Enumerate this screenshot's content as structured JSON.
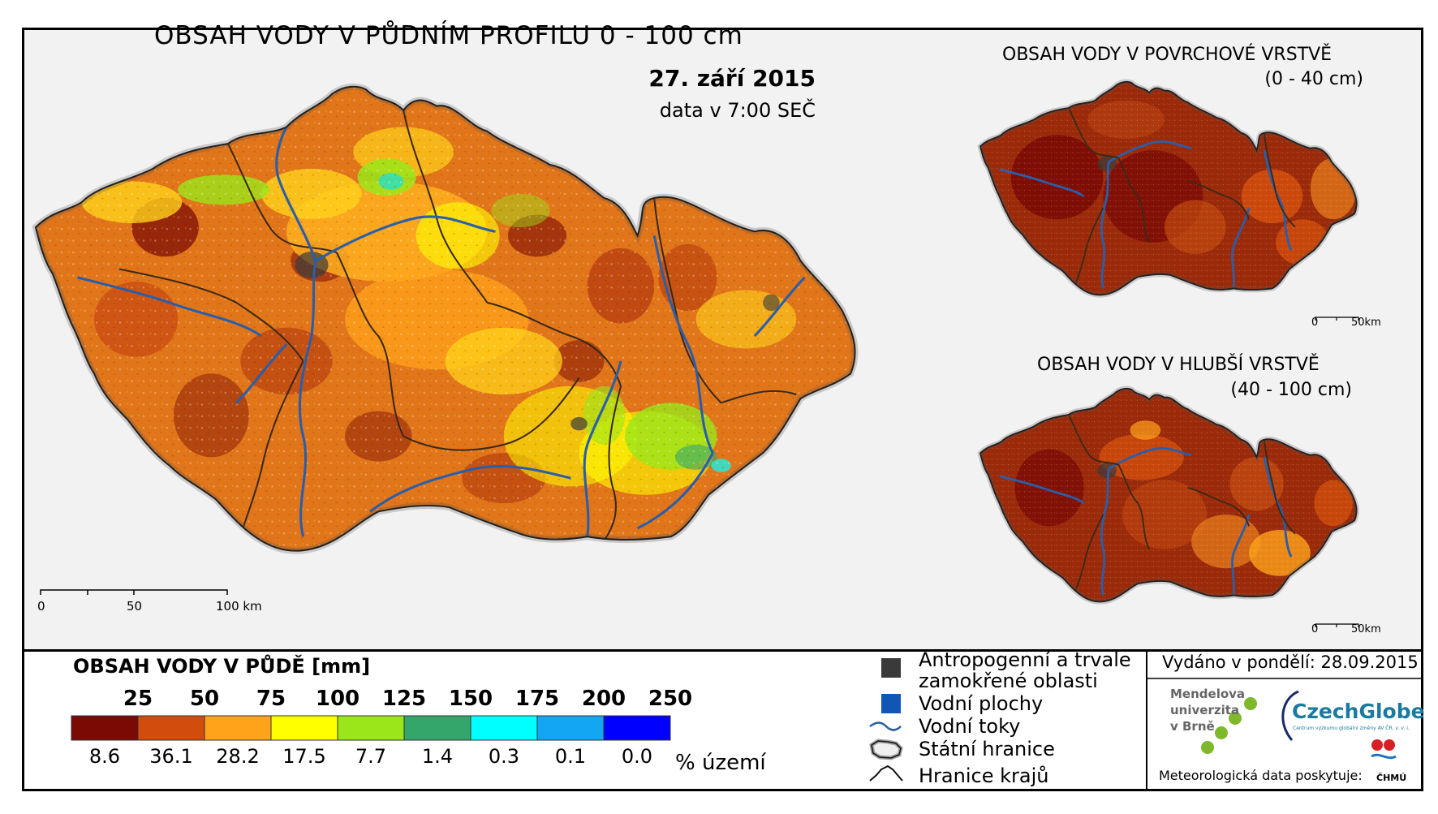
{
  "main_map": {
    "title": "OBSAH VODY V PŮDNÍM PROFILU 0 - 100 cm",
    "date": "27. září 2015",
    "time": "data v 7:00 SEČ",
    "scale": [
      "0",
      "50",
      "100 km"
    ]
  },
  "inset_top": {
    "title": "OBSAH VODY V POVRCHOVÉ VRSTVĚ",
    "depth": "(0 - 40 cm)",
    "scale": [
      "0",
      "50km"
    ]
  },
  "inset_bottom": {
    "title": "OBSAH VODY V HLUBŠÍ VRSTVĚ",
    "depth": "(40 - 100 cm)",
    "scale": [
      "0",
      "50km"
    ]
  },
  "legend": {
    "title": "OBSAH VODY V PŮDĚ [mm]",
    "thresholds": [
      "25",
      "50",
      "75",
      "100",
      "125",
      "150",
      "175",
      "200",
      "250"
    ],
    "classes": [
      {
        "color": "#7b0a05",
        "percent": "8.6"
      },
      {
        "color": "#d24d0d",
        "percent": "36.1"
      },
      {
        "color": "#ffa31a",
        "percent": "28.2"
      },
      {
        "color": "#ffff00",
        "percent": "17.5"
      },
      {
        "color": "#9ae61a",
        "percent": "7.7"
      },
      {
        "color": "#35a66b",
        "percent": "1.4"
      },
      {
        "color": "#00ffff",
        "percent": "0.3"
      },
      {
        "color": "#13a6f2",
        "percent": "0.1"
      },
      {
        "color": "#0000ff",
        "percent": "0.0"
      }
    ],
    "percent_unit": "% území"
  },
  "symbols": {
    "anthropogenic": "Antropogenní a trvale zamokřené oblasti",
    "anthropogenic_line1": "Antropogenní a trvale",
    "anthropogenic_line2": "zamokřené oblasti",
    "water_bodies": "Vodní plochy",
    "rivers": "Vodní toky",
    "state_border": "Státní hranice",
    "region_border": "Hranice krajů",
    "anthropogenic_color": "#3a3a3a",
    "water_color": "#1155b5",
    "river_color": "#2b5ea8"
  },
  "footer": {
    "issued": "Vydáno v pondělí: 28.09.2015",
    "mendel_line1": "Mendelova",
    "mendel_line2": "univerzita",
    "mendel_line3": "v Brně",
    "czechglobe": "CzechGlobe",
    "czechglobe_sub": "Centrum výzkumu globální změny AV ČR, v. v. i.",
    "meteo_source": "Meteorologická data poskytuje:",
    "chmu": "ČHMÚ"
  }
}
